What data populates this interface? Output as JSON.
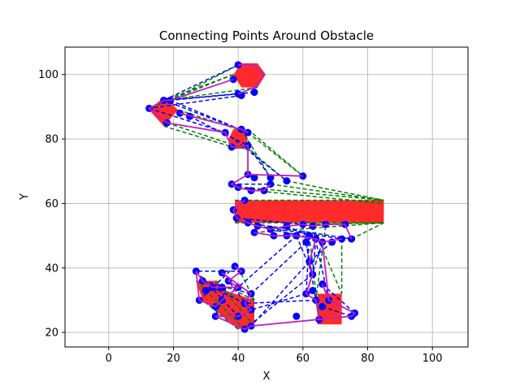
{
  "chart_data": {
    "type": "scatter",
    "title": "Connecting Points Around Obstacle",
    "xlabel": "X",
    "ylabel": "Y",
    "xlim": [
      -13.5,
      111
    ],
    "ylim": [
      15.5,
      108.5
    ],
    "xticks": [
      0,
      20,
      40,
      60,
      80,
      100
    ],
    "yticks": [
      20,
      40,
      60,
      80,
      100
    ],
    "xtick_labels": [
      "0",
      "20",
      "40",
      "60",
      "80",
      "100"
    ],
    "ytick_labels": [
      "20",
      "40",
      "60",
      "80",
      "100"
    ],
    "grid": true,
    "colors": {
      "obstacle": "#ff2020",
      "point": "#0000ff",
      "dashed_green": "#008000",
      "dashed_blue": "#0000ff",
      "path": "#c020c0"
    },
    "obstacles": [
      {
        "shape": "hexagon",
        "points": [
          [
            38.5,
            100
          ],
          [
            41,
            103.5
          ],
          [
            46,
            103.5
          ],
          [
            48.5,
            100
          ],
          [
            46,
            96
          ],
          [
            41,
            96
          ]
        ]
      },
      {
        "shape": "diamond",
        "points": [
          [
            12.5,
            89
          ],
          [
            17,
            93
          ],
          [
            21.5,
            89
          ],
          [
            17,
            84
          ]
        ]
      },
      {
        "shape": "hexagon",
        "points": [
          [
            37,
            80
          ],
          [
            38.5,
            83
          ],
          [
            42,
            83
          ],
          [
            43,
            80
          ],
          [
            42,
            77
          ],
          [
            38.5,
            77
          ]
        ]
      },
      {
        "shape": "rectangle",
        "points": [
          [
            39,
            61
          ],
          [
            85,
            61
          ],
          [
            85,
            54
          ],
          [
            39,
            54
          ]
        ]
      },
      {
        "shape": "polygon",
        "points": [
          [
            27,
            36
          ],
          [
            33,
            36
          ],
          [
            36,
            33
          ],
          [
            42,
            31
          ],
          [
            45,
            30
          ],
          [
            45,
            22
          ],
          [
            40,
            21
          ],
          [
            29,
            30
          ]
        ]
      },
      {
        "shape": "rectangle",
        "points": [
          [
            64.5,
            32
          ],
          [
            72,
            32
          ],
          [
            72,
            22.5
          ],
          [
            64.5,
            22.5
          ]
        ]
      }
    ],
    "points": [
      [
        40,
        103
      ],
      [
        38.5,
        98.5
      ],
      [
        40,
        94
      ],
      [
        41,
        93.5
      ],
      [
        45,
        94.5
      ],
      [
        12.5,
        89.5
      ],
      [
        17,
        92
      ],
      [
        19,
        92
      ],
      [
        18,
        85
      ],
      [
        22,
        88
      ],
      [
        25,
        87
      ],
      [
        36,
        82
      ],
      [
        41,
        83
      ],
      [
        38,
        77.5
      ],
      [
        43,
        78
      ],
      [
        43,
        82
      ],
      [
        43,
        69
      ],
      [
        45,
        68
      ],
      [
        50,
        68
      ],
      [
        55,
        67
      ],
      [
        60,
        68.5
      ],
      [
        38,
        66
      ],
      [
        40,
        65
      ],
      [
        44,
        64
      ],
      [
        48,
        64
      ],
      [
        50,
        66
      ],
      [
        42,
        61
      ],
      [
        38.5,
        58
      ],
      [
        39.5,
        55.5
      ],
      [
        43,
        54
      ],
      [
        46,
        53
      ],
      [
        50,
        52
      ],
      [
        55,
        53
      ],
      [
        60,
        53.5
      ],
      [
        63,
        53
      ],
      [
        67,
        53.5
      ],
      [
        73,
        53.5
      ],
      [
        75,
        49
      ],
      [
        45,
        51
      ],
      [
        51,
        50
      ],
      [
        55,
        50
      ],
      [
        58,
        50
      ],
      [
        62,
        50
      ],
      [
        64,
        49
      ],
      [
        66,
        48
      ],
      [
        69,
        48
      ],
      [
        72,
        49
      ],
      [
        61,
        48
      ],
      [
        62,
        42
      ],
      [
        63,
        38
      ],
      [
        61,
        32
      ],
      [
        64,
        30
      ],
      [
        68,
        30
      ],
      [
        66,
        28
      ],
      [
        65,
        24
      ],
      [
        39,
        40.5
      ],
      [
        41,
        39
      ],
      [
        35,
        38.5
      ],
      [
        27,
        39
      ],
      [
        29,
        36
      ],
      [
        32,
        34
      ],
      [
        35,
        34
      ],
      [
        37,
        36
      ],
      [
        40,
        34
      ],
      [
        30,
        33
      ],
      [
        28,
        30
      ],
      [
        33,
        28
      ],
      [
        35,
        30
      ],
      [
        44,
        32
      ],
      [
        42,
        29
      ],
      [
        44,
        27
      ],
      [
        40,
        25
      ],
      [
        33,
        25
      ],
      [
        42,
        21
      ],
      [
        44,
        22
      ],
      [
        58,
        25
      ],
      [
        63,
        33
      ],
      [
        66,
        35
      ],
      [
        75,
        25
      ],
      [
        76,
        26
      ]
    ],
    "green_lines": [
      [
        [
          38.5,
          100
        ],
        [
          17,
          92
        ]
      ],
      [
        [
          46,
          96
        ],
        [
          17,
          92
        ]
      ],
      [
        [
          41,
          103.5
        ],
        [
          19,
          92
        ]
      ],
      [
        [
          38.5,
          100
        ],
        [
          12.5,
          89.5
        ]
      ],
      [
        [
          17,
          84
        ],
        [
          40,
          77
        ]
      ],
      [
        [
          21.5,
          89
        ],
        [
          43,
          82
        ]
      ],
      [
        [
          18,
          85
        ],
        [
          42,
          77
        ]
      ],
      [
        [
          43,
          83
        ],
        [
          60,
          68.5
        ]
      ],
      [
        [
          43,
          77
        ],
        [
          55,
          67
        ]
      ],
      [
        [
          41,
          83
        ],
        [
          50,
          68
        ]
      ],
      [
        [
          43,
          82
        ],
        [
          60,
          68.5
        ]
      ],
      [
        [
          39,
          61
        ],
        [
          85,
          61
        ]
      ],
      [
        [
          42,
          65
        ],
        [
          85,
          61
        ]
      ],
      [
        [
          45,
          64
        ],
        [
          85,
          60
        ]
      ],
      [
        [
          50,
          66
        ],
        [
          85,
          61
        ]
      ],
      [
        [
          55,
          67
        ],
        [
          85,
          61
        ]
      ],
      [
        [
          39,
          54
        ],
        [
          85,
          54
        ]
      ],
      [
        [
          45,
          51
        ],
        [
          85,
          54
        ]
      ],
      [
        [
          60,
          53.5
        ],
        [
          85,
          54
        ]
      ],
      [
        [
          75,
          49
        ],
        [
          85,
          54
        ]
      ],
      [
        [
          63,
          53
        ],
        [
          72,
          32
        ]
      ],
      [
        [
          67,
          53
        ],
        [
          64,
          30
        ]
      ],
      [
        [
          72,
          49
        ],
        [
          72,
          32
        ]
      ],
      [
        [
          62,
          50
        ],
        [
          65,
          24
        ]
      ],
      [
        [
          45,
          30
        ],
        [
          44,
          32
        ]
      ],
      [
        [
          27,
          36
        ],
        [
          42,
          21
        ]
      ],
      [
        [
          40,
          21
        ],
        [
          29,
          30
        ]
      ],
      [
        [
          45,
          22
        ],
        [
          33,
          36
        ]
      ],
      [
        [
          33,
          36
        ],
        [
          45,
          30
        ]
      ],
      [
        [
          36,
          33
        ],
        [
          44,
          27
        ]
      ],
      [
        [
          40,
          40
        ],
        [
          45,
          30
        ]
      ]
    ],
    "blue_lines": [
      [
        [
          40,
          103
        ],
        [
          17,
          92
        ]
      ],
      [
        [
          40,
          94
        ],
        [
          19,
          92
        ]
      ],
      [
        [
          41,
          93.5
        ],
        [
          12.5,
          89.5
        ]
      ],
      [
        [
          45,
          94.5
        ],
        [
          17,
          92
        ]
      ],
      [
        [
          19,
          92
        ],
        [
          43,
          82
        ]
      ],
      [
        [
          22,
          88
        ],
        [
          41,
          83
        ]
      ],
      [
        [
          25,
          87
        ],
        [
          43,
          78
        ]
      ],
      [
        [
          12.5,
          89.5
        ],
        [
          36,
          82
        ]
      ],
      [
        [
          17,
          92
        ],
        [
          43,
          82
        ]
      ],
      [
        [
          36,
          82
        ],
        [
          55,
          67
        ]
      ],
      [
        [
          43,
          78
        ],
        [
          50,
          68
        ]
      ],
      [
        [
          43,
          69
        ],
        [
          60,
          68.5
        ]
      ],
      [
        [
          38,
          66
        ],
        [
          50,
          66
        ]
      ],
      [
        [
          40,
          65
        ],
        [
          48,
          64
        ]
      ],
      [
        [
          38.5,
          58
        ],
        [
          42,
          61
        ]
      ],
      [
        [
          39.5,
          55.5
        ],
        [
          60,
          53.5
        ]
      ],
      [
        [
          43,
          54
        ],
        [
          75,
          49
        ]
      ],
      [
        [
          46,
          53
        ],
        [
          72,
          49
        ]
      ],
      [
        [
          50,
          52
        ],
        [
          69,
          48
        ]
      ],
      [
        [
          55,
          53
        ],
        [
          66,
          48
        ]
      ],
      [
        [
          58,
          50
        ],
        [
          63,
          38
        ]
      ],
      [
        [
          62,
          50
        ],
        [
          61,
          32
        ]
      ],
      [
        [
          64,
          49
        ],
        [
          63,
          38
        ]
      ],
      [
        [
          66,
          48
        ],
        [
          61,
          32
        ]
      ],
      [
        [
          69,
          48
        ],
        [
          62,
          42
        ]
      ],
      [
        [
          61,
          48
        ],
        [
          64,
          30
        ]
      ],
      [
        [
          63,
          53
        ],
        [
          68,
          30
        ]
      ],
      [
        [
          60,
          53.5
        ],
        [
          62,
          42
        ]
      ],
      [
        [
          62,
          42
        ],
        [
          44,
          22
        ]
      ],
      [
        [
          63,
          38
        ],
        [
          42,
          21
        ]
      ],
      [
        [
          61,
          32
        ],
        [
          44,
          27
        ]
      ],
      [
        [
          64,
          30
        ],
        [
          42,
          29
        ]
      ],
      [
        [
          61,
          48
        ],
        [
          44,
          32
        ]
      ],
      [
        [
          58,
          50
        ],
        [
          40,
          34
        ]
      ],
      [
        [
          39,
          40.5
        ],
        [
          28,
          30
        ]
      ],
      [
        [
          41,
          39
        ],
        [
          27,
          39
        ]
      ],
      [
        [
          35,
          38.5
        ],
        [
          44,
          27
        ]
      ],
      [
        [
          27,
          39
        ],
        [
          40,
          25
        ]
      ],
      [
        [
          29,
          36
        ],
        [
          44,
          32
        ]
      ],
      [
        [
          32,
          34
        ],
        [
          42,
          29
        ]
      ],
      [
        [
          37,
          36
        ],
        [
          33,
          25
        ]
      ],
      [
        [
          40,
          34
        ],
        [
          30,
          33
        ]
      ],
      [
        [
          68,
          30
        ],
        [
          76,
          26
        ]
      ],
      [
        [
          66,
          28
        ],
        [
          75,
          25
        ]
      ],
      [
        [
          66,
          35
        ],
        [
          76,
          26
        ]
      ]
    ],
    "path_lines": [
      [
        [
          40,
          103
        ],
        [
          45,
          103
        ],
        [
          48,
          100
        ],
        [
          45,
          96
        ],
        [
          40,
          94
        ]
      ],
      [
        [
          38.5,
          98.5
        ],
        [
          19,
          92
        ],
        [
          17,
          92
        ],
        [
          12.5,
          89.5
        ],
        [
          18,
          85
        ]
      ],
      [
        [
          18,
          85
        ],
        [
          36,
          82
        ],
        [
          38,
          77.5
        ]
      ],
      [
        [
          22,
          88
        ],
        [
          41,
          83
        ],
        [
          43,
          82
        ]
      ],
      [
        [
          38,
          77.5
        ],
        [
          43,
          78
        ],
        [
          43,
          69
        ]
      ],
      [
        [
          43,
          69
        ],
        [
          60,
          68.5
        ]
      ],
      [
        [
          43,
          69
        ],
        [
          38,
          66
        ],
        [
          40,
          65
        ],
        [
          44,
          64
        ],
        [
          48,
          64
        ],
        [
          50,
          66
        ]
      ],
      [
        [
          42,
          61
        ],
        [
          38.5,
          58
        ],
        [
          39.5,
          55.5
        ],
        [
          43,
          54
        ]
      ],
      [
        [
          43,
          54
        ],
        [
          46,
          53
        ],
        [
          50,
          52
        ],
        [
          55,
          53
        ],
        [
          60,
          53.5
        ],
        [
          63,
          53
        ],
        [
          67,
          53.5
        ],
        [
          73,
          53.5
        ],
        [
          75,
          49
        ]
      ],
      [
        [
          45,
          51
        ],
        [
          51,
          50
        ],
        [
          58,
          50
        ],
        [
          64,
          49
        ],
        [
          66,
          48
        ],
        [
          72,
          49
        ]
      ],
      [
        [
          64,
          49
        ],
        [
          62,
          42
        ],
        [
          63,
          38
        ],
        [
          61,
          32
        ],
        [
          64,
          30
        ],
        [
          65,
          24
        ]
      ],
      [
        [
          66,
          48
        ],
        [
          68,
          30
        ],
        [
          66,
          35
        ]
      ],
      [
        [
          68,
          30
        ],
        [
          76,
          26
        ],
        [
          75,
          25
        ],
        [
          44,
          22
        ]
      ],
      [
        [
          39,
          40.5
        ],
        [
          41,
          39
        ],
        [
          37,
          36
        ],
        [
          40,
          34
        ],
        [
          35,
          34
        ],
        [
          32,
          34
        ],
        [
          29,
          36
        ],
        [
          27,
          39
        ]
      ],
      [
        [
          27,
          39
        ],
        [
          28,
          30
        ],
        [
          33,
          28
        ],
        [
          35,
          30
        ],
        [
          40,
          34
        ]
      ],
      [
        [
          35,
          38.5
        ],
        [
          44,
          32
        ],
        [
          42,
          29
        ],
        [
          44,
          27
        ],
        [
          40,
          25
        ],
        [
          33,
          25
        ]
      ],
      [
        [
          33,
          25
        ],
        [
          42,
          21
        ],
        [
          44,
          22
        ]
      ]
    ]
  }
}
